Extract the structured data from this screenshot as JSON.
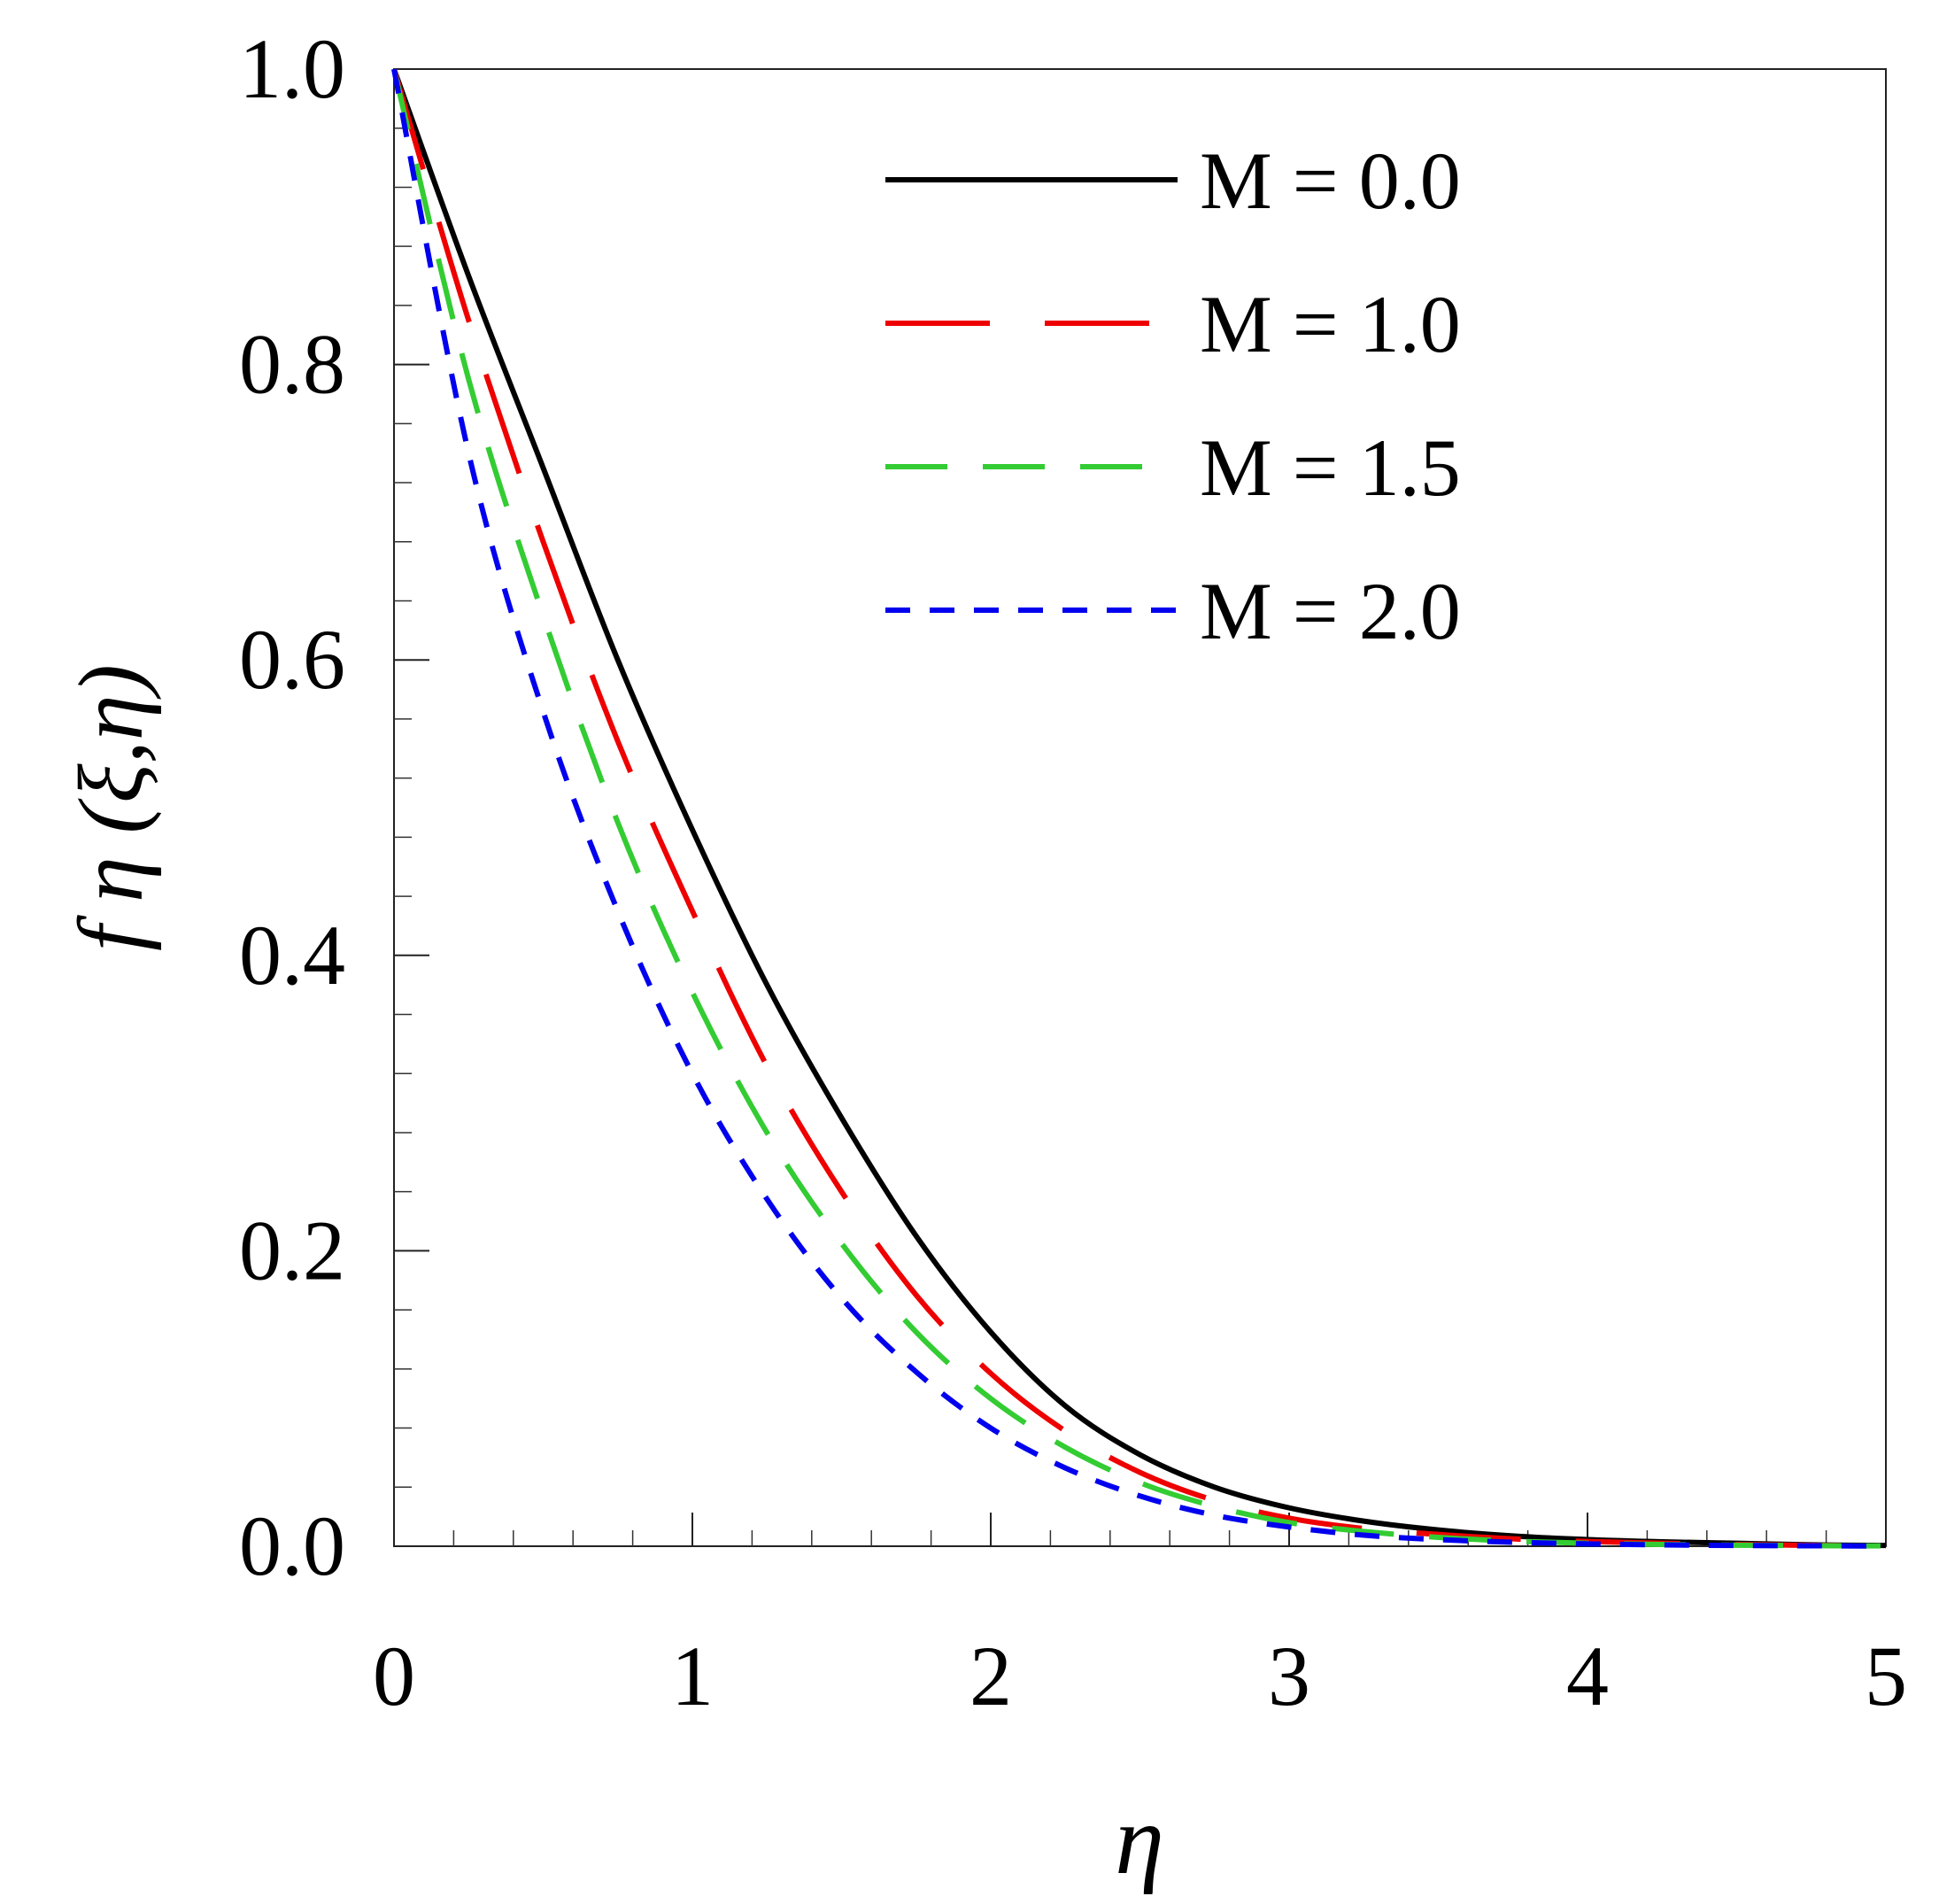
{
  "chart_data": {
    "type": "line",
    "title": "",
    "xlabel": "η",
    "ylabel": "f η (ξ,η)",
    "xlim": [
      0,
      5
    ],
    "ylim": [
      0,
      1
    ],
    "xticks": [
      0,
      1,
      2,
      3,
      4,
      5
    ],
    "xtick_labels": [
      "0",
      "1",
      "2",
      "3",
      "4",
      "5"
    ],
    "yticks": [
      0,
      0.2,
      0.4,
      0.6,
      0.8,
      1.0
    ],
    "ytick_labels": [
      "0.0",
      "0.2",
      "0.4",
      "0.6",
      "0.8",
      "1.0"
    ],
    "legend_position": "top-right",
    "x": [
      0,
      0.25,
      0.5,
      0.75,
      1.0,
      1.25,
      1.5,
      1.75,
      2.0,
      2.25,
      2.5,
      2.75,
      3.0,
      3.25,
      3.5,
      3.75,
      4.0,
      4.25,
      4.5,
      4.75,
      5.0
    ],
    "series": [
      {
        "name": "M = 0.0",
        "color": "#000000",
        "dash": "solid",
        "values": [
          1.0,
          0.86,
          0.73,
          0.6,
          0.485,
          0.38,
          0.29,
          0.21,
          0.145,
          0.095,
          0.062,
          0.04,
          0.026,
          0.017,
          0.011,
          0.007,
          0.0045,
          0.003,
          0.002,
          0.001,
          0.0005
        ]
      },
      {
        "name": "M = 1.0",
        "color": "#ee0000",
        "dash": "long",
        "values": [
          1.0,
          0.83,
          0.68,
          0.545,
          0.43,
          0.325,
          0.24,
          0.17,
          0.117,
          0.078,
          0.05,
          0.031,
          0.019,
          0.012,
          0.008,
          0.005,
          0.0032,
          0.002,
          0.0012,
          0.0006,
          0.0003
        ]
      },
      {
        "name": "M = 1.5",
        "color": "#33cc33",
        "dash": "medium",
        "values": [
          1.0,
          0.79,
          0.63,
          0.49,
          0.375,
          0.28,
          0.205,
          0.145,
          0.1,
          0.067,
          0.043,
          0.027,
          0.016,
          0.01,
          0.006,
          0.0035,
          0.002,
          0.0012,
          0.0007,
          0.0004,
          0.0002
        ]
      },
      {
        "name": "M = 2.0",
        "color": "#0000ee",
        "dash": "short",
        "values": [
          1.0,
          0.74,
          0.565,
          0.43,
          0.32,
          0.235,
          0.168,
          0.118,
          0.08,
          0.053,
          0.034,
          0.021,
          0.013,
          0.0075,
          0.0045,
          0.0027,
          0.0016,
          0.0009,
          0.0005,
          0.0003,
          0.0001
        ]
      }
    ]
  }
}
